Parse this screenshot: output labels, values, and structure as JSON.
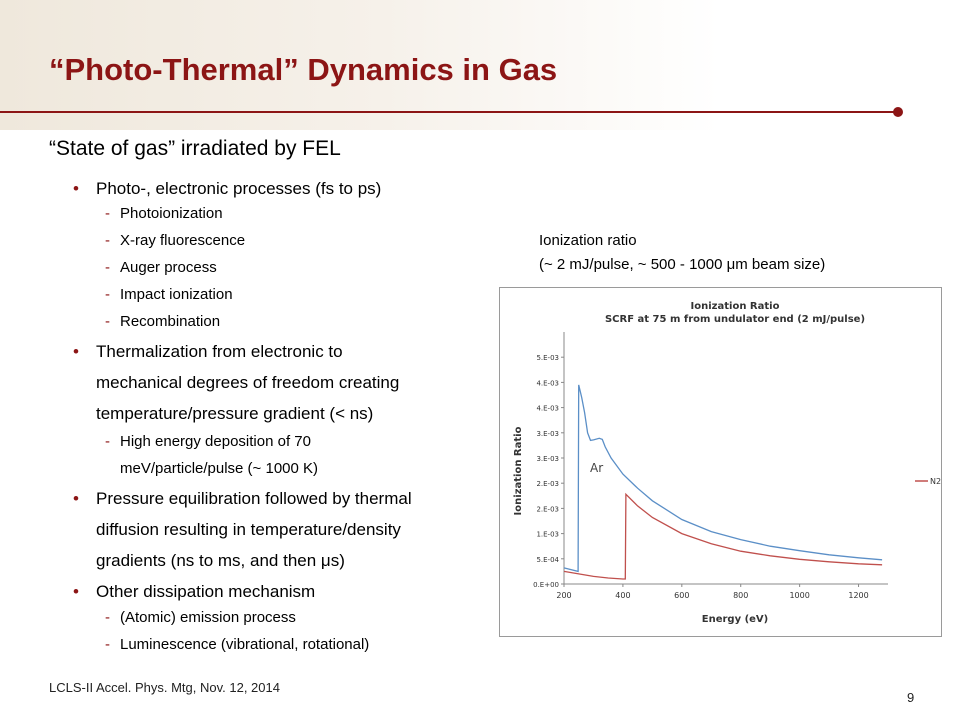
{
  "slide": {
    "title": "“Photo-Thermal” Dynamics in Gas",
    "subtitle": "“State of gas” irradiated by FEL",
    "footer": "LCLS-II Accel. Phys. Mtg, Nov. 12, 2014",
    "page_number": "9"
  },
  "content": {
    "b1": "Photo-, electronic processes (fs to ps)",
    "b1_items": [
      "Photoionization",
      "X-ray fluorescence",
      "Auger process",
      "Impact ionization",
      "Recombination"
    ],
    "b2_lines": [
      "Thermalization from electronic to",
      "mechanical degrees of freedom creating",
      "temperature/pressure gradient (< ns)"
    ],
    "b2_sub_lines": [
      "High energy deposition of 70",
      "meV/particle/pulse (~ 1000 K)"
    ],
    "b3_lines": [
      "Pressure equilibration followed by thermal",
      "diffusion resulting in temperature/density",
      "gradients (ns to ms, and then μs)"
    ],
    "b4": "Other dissipation mechanism",
    "b4_items": [
      "(Atomic) emission process",
      "Luminescence (vibrational, rotational)"
    ]
  },
  "caption": {
    "line1": "Ionization ratio",
    "line2": "(~ 2 mJ/pulse, ~ 500 - 1000 μm beam size)"
  },
  "chart_data": {
    "type": "line",
    "title": "Ionization Ratio",
    "subtitle": "SCRF at 75 m from undulator end (2 mJ/pulse)",
    "xlabel": "Energy (eV)",
    "ylabel": "Ionization Ratio",
    "xlim": [
      200,
      1300
    ],
    "ylim": [
      0,
      0.005
    ],
    "x_ticks": [
      "200",
      "400",
      "600",
      "800",
      "1000",
      "1200"
    ],
    "x_tick_values": [
      200,
      400,
      600,
      800,
      1000,
      1200
    ],
    "y_ticks": [
      "0.E+00",
      "5.E-04",
      "1.E-03",
      "2.E-03",
      "2.E-03",
      "3.E-03",
      "3.E-03",
      "4.E-03",
      "4.E-03",
      "5.E-03"
    ],
    "y_tick_values": [
      0,
      0.0005,
      0.001,
      0.0015,
      0.002,
      0.0025,
      0.003,
      0.0035,
      0.004,
      0.0045
    ],
    "annotation": "Ar",
    "legend": [
      "N2"
    ],
    "colors": {
      "ar": "#5b8fc7",
      "n2": "#c0504d"
    },
    "series": [
      {
        "values_x": [
          200,
          248,
          250,
          260,
          270,
          280,
          290,
          300,
          320,
          330,
          340,
          360,
          400,
          450,
          500,
          600,
          700,
          800,
          900,
          1000,
          1100,
          1200,
          1280
        ],
        "values_y": [
          0.00032,
          0.00025,
          0.00395,
          0.0037,
          0.0034,
          0.003,
          0.00285,
          0.00286,
          0.00289,
          0.00287,
          0.00272,
          0.0025,
          0.00218,
          0.0019,
          0.00165,
          0.00128,
          0.00104,
          0.00088,
          0.00075,
          0.00066,
          0.00058,
          0.00052,
          0.00048
        ]
      },
      {
        "name": "N2",
        "values_x": [
          200,
          250,
          300,
          350,
          400,
          408,
          410,
          450,
          500,
          600,
          700,
          800,
          900,
          1000,
          1100,
          1200,
          1280
        ],
        "values_y": [
          0.00025,
          0.0002,
          0.00015,
          0.00012,
          0.0001,
          0.0001,
          0.00178,
          0.00155,
          0.00132,
          0.001,
          0.0008,
          0.00065,
          0.00056,
          0.00049,
          0.00044,
          0.0004,
          0.00038
        ]
      }
    ]
  }
}
